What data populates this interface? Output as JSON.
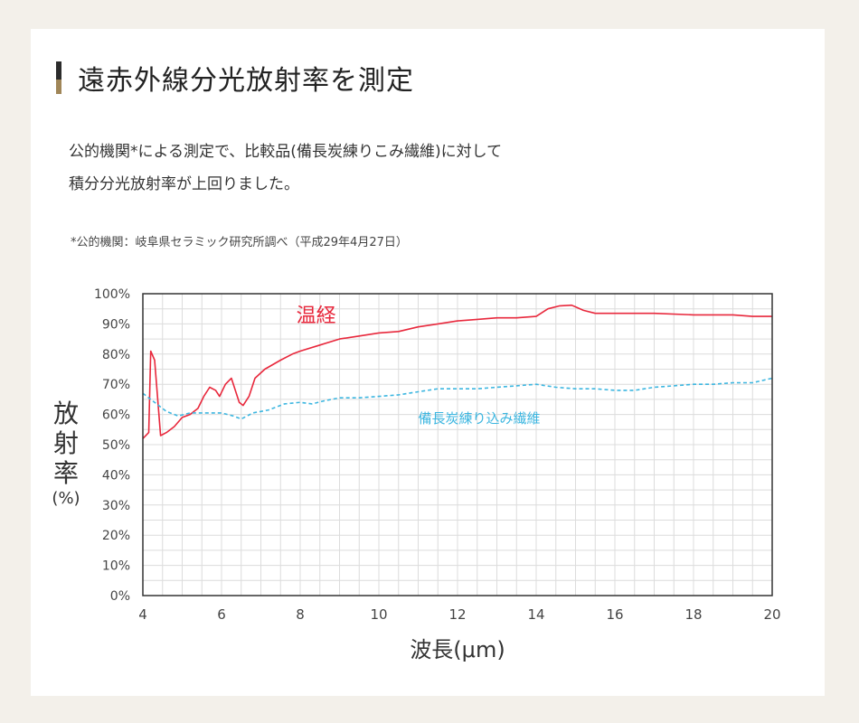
{
  "heading": "遠赤外線分光放射率を測定",
  "intro": {
    "line1": "公的機関*による測定で、比較品(備長炭練りこみ繊維)に対して",
    "line2": "積分分光放射率が上回りました。"
  },
  "note": "*公的機関：岐阜県セラミック研究所調べ（平成29年4月27日）",
  "chart_data": {
    "type": "line",
    "xlabel": "波長(μm)",
    "ylabel_chars": [
      "放",
      "射",
      "率"
    ],
    "ylabel_unit": "(%)",
    "xlim": [
      4,
      20
    ],
    "ylim": [
      0,
      100
    ],
    "xticks": [
      4,
      6,
      8,
      10,
      12,
      14,
      16,
      18,
      20
    ],
    "yticks": [
      "0%",
      "10%",
      "20%",
      "30%",
      "40%",
      "50%",
      "60%",
      "70%",
      "80%",
      "90%",
      "100%"
    ],
    "grid": true,
    "series": [
      {
        "name": "温経",
        "color": "#e8283c",
        "style": "solid",
        "points": [
          [
            4.0,
            52
          ],
          [
            4.15,
            54
          ],
          [
            4.2,
            81
          ],
          [
            4.3,
            78
          ],
          [
            4.45,
            53
          ],
          [
            4.6,
            54
          ],
          [
            4.8,
            56
          ],
          [
            5.0,
            59
          ],
          [
            5.2,
            60
          ],
          [
            5.4,
            62
          ],
          [
            5.55,
            66
          ],
          [
            5.7,
            69
          ],
          [
            5.85,
            68
          ],
          [
            5.95,
            66
          ],
          [
            6.1,
            70
          ],
          [
            6.25,
            72
          ],
          [
            6.45,
            64
          ],
          [
            6.55,
            63
          ],
          [
            6.7,
            66
          ],
          [
            6.85,
            72
          ],
          [
            7.1,
            75
          ],
          [
            7.5,
            78
          ],
          [
            7.8,
            80
          ],
          [
            8.0,
            81
          ],
          [
            8.5,
            83
          ],
          [
            9.0,
            85
          ],
          [
            9.5,
            86
          ],
          [
            10.0,
            87
          ],
          [
            10.5,
            87.5
          ],
          [
            11.0,
            89
          ],
          [
            11.5,
            90
          ],
          [
            12.0,
            91
          ],
          [
            12.5,
            91.5
          ],
          [
            13.0,
            92
          ],
          [
            13.5,
            92
          ],
          [
            14.0,
            92.5
          ],
          [
            14.3,
            95
          ],
          [
            14.6,
            96
          ],
          [
            14.9,
            96.2
          ],
          [
            15.2,
            94.5
          ],
          [
            15.5,
            93.5
          ],
          [
            16.0,
            93.5
          ],
          [
            17.0,
            93.5
          ],
          [
            18.0,
            93
          ],
          [
            19.0,
            93
          ],
          [
            19.5,
            92.5
          ],
          [
            20.0,
            92.5
          ]
        ]
      },
      {
        "name": "備長炭練り込み繊維",
        "color": "#3cb6e0",
        "style": "dashed",
        "points": [
          [
            4.0,
            67
          ],
          [
            4.3,
            64
          ],
          [
            4.6,
            61
          ],
          [
            4.9,
            59.5
          ],
          [
            5.2,
            60.5
          ],
          [
            5.6,
            60.5
          ],
          [
            6.0,
            60.5
          ],
          [
            6.3,
            59.5
          ],
          [
            6.5,
            58.5
          ],
          [
            6.8,
            60.5
          ],
          [
            7.2,
            61.5
          ],
          [
            7.6,
            63.5
          ],
          [
            8.0,
            64
          ],
          [
            8.3,
            63.5
          ],
          [
            8.6,
            64.5
          ],
          [
            9.0,
            65.5
          ],
          [
            9.5,
            65.5
          ],
          [
            10.0,
            66
          ],
          [
            10.5,
            66.5
          ],
          [
            11.0,
            67.5
          ],
          [
            11.5,
            68.5
          ],
          [
            12.0,
            68.5
          ],
          [
            12.5,
            68.5
          ],
          [
            13.0,
            69
          ],
          [
            13.5,
            69.5
          ],
          [
            14.0,
            70
          ],
          [
            14.5,
            69
          ],
          [
            15.0,
            68.5
          ],
          [
            15.5,
            68.5
          ],
          [
            16.0,
            68
          ],
          [
            16.5,
            68
          ],
          [
            17.0,
            69
          ],
          [
            17.5,
            69.5
          ],
          [
            18.0,
            70
          ],
          [
            18.5,
            70
          ],
          [
            19.0,
            70.5
          ],
          [
            19.5,
            70.5
          ],
          [
            20.0,
            72
          ]
        ]
      }
    ]
  }
}
